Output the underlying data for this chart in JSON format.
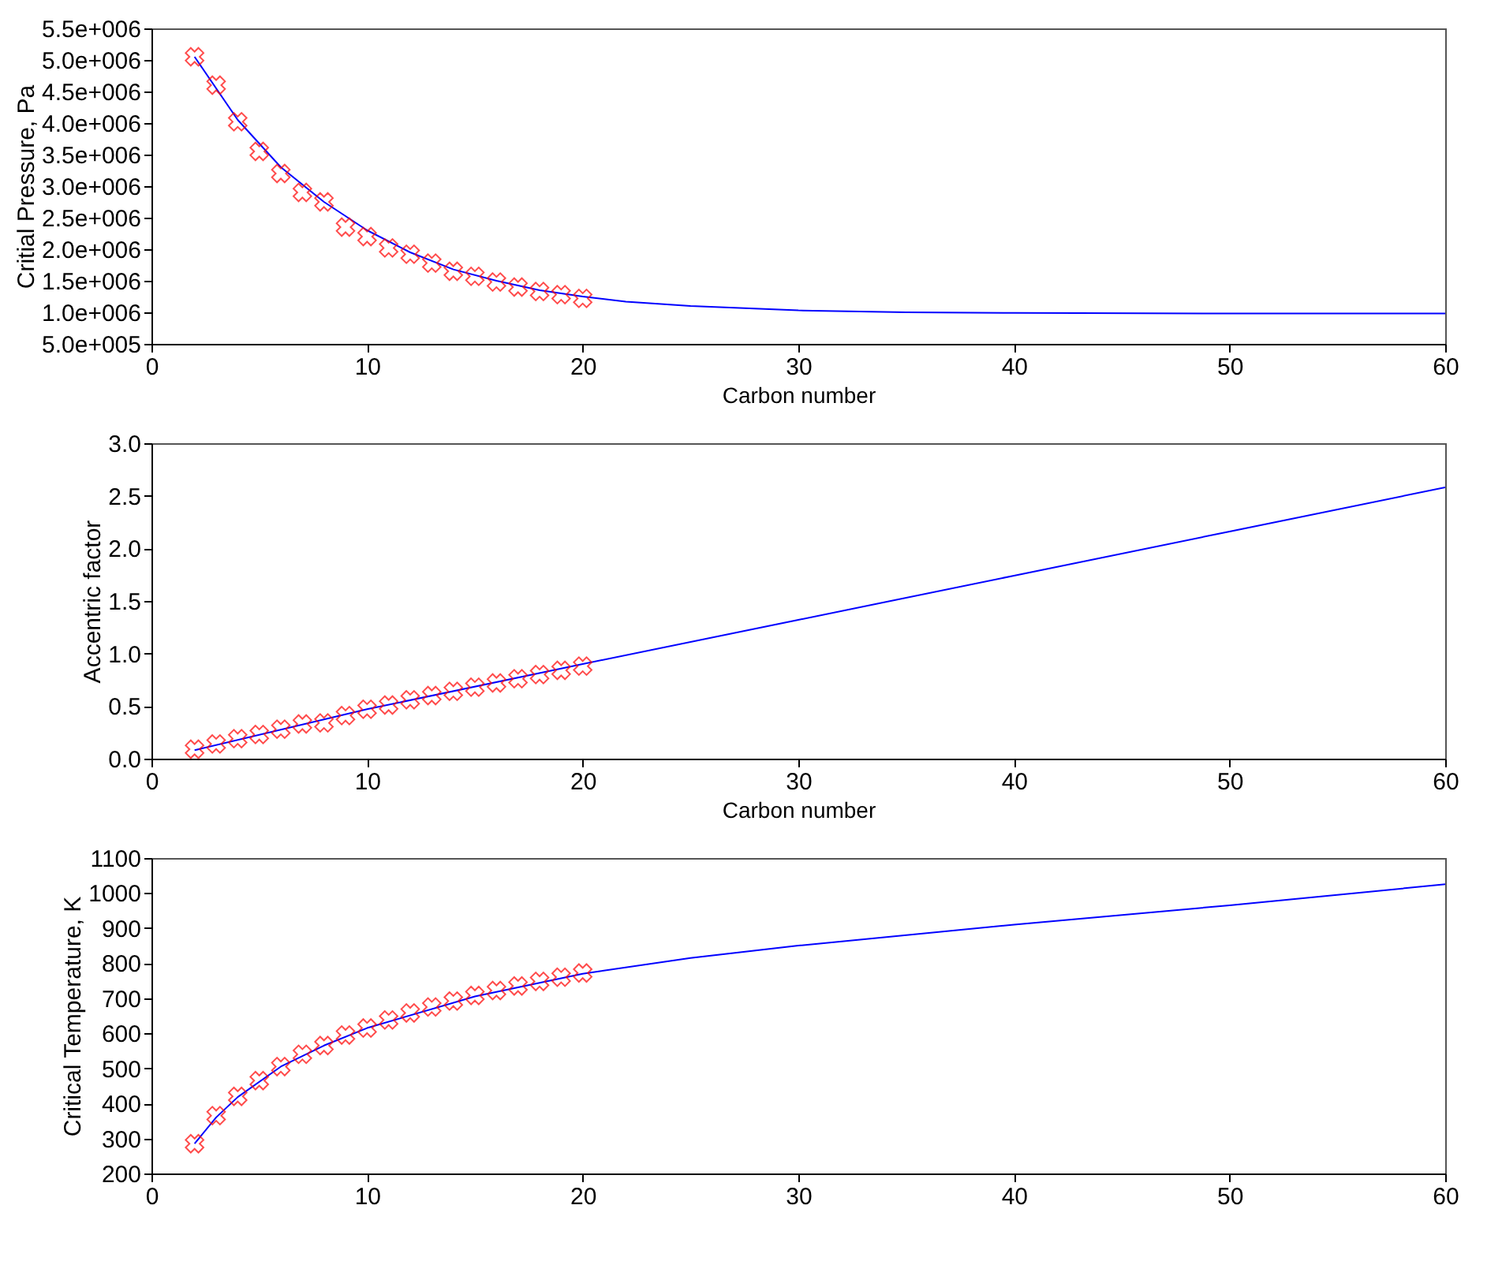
{
  "chart_data": [
    {
      "type": "line",
      "xlabel": "Carbon number",
      "ylabel": "Critial Pressure, Pa",
      "xlim": [
        0,
        60
      ],
      "xticks": [
        0,
        10,
        20,
        30,
        40,
        50,
        60
      ],
      "ylim": [
        500000,
        5500000
      ],
      "yticks": [
        {
          "value": 500000,
          "label": "5.0e+005"
        },
        {
          "value": 1000000,
          "label": "1.0e+006"
        },
        {
          "value": 1500000,
          "label": "1.5e+006"
        },
        {
          "value": 2000000,
          "label": "2.0e+006"
        },
        {
          "value": 2500000,
          "label": "2.5e+006"
        },
        {
          "value": 3000000,
          "label": "3.0e+006"
        },
        {
          "value": 3500000,
          "label": "3.5e+006"
        },
        {
          "value": 4000000,
          "label": "4.0e+006"
        },
        {
          "value": 4500000,
          "label": "4.5e+006"
        },
        {
          "value": 5000000,
          "label": "5.0e+006"
        },
        {
          "value": 5500000,
          "label": "5.5e+006"
        }
      ],
      "series": [
        {
          "type": "line",
          "color": "#0000ff",
          "x": [
            2,
            4,
            6,
            8,
            10,
            12,
            14,
            16,
            18,
            20,
            22,
            25,
            30,
            35,
            40,
            50,
            60
          ],
          "values": [
            5050000,
            4050000,
            3300000,
            2750000,
            2300000,
            1950000,
            1680000,
            1500000,
            1350000,
            1250000,
            1170000,
            1100000,
            1030000,
            1000000,
            990000,
            980000,
            980000
          ]
        },
        {
          "type": "scatter",
          "color": "#ff0000",
          "marker": "cross",
          "x": [
            2,
            3,
            4,
            5,
            6,
            7,
            8,
            9,
            10,
            11,
            12,
            13,
            14,
            15,
            16,
            17,
            18,
            19,
            20
          ],
          "values": [
            5050000,
            4600000,
            4020000,
            3550000,
            3200000,
            2900000,
            2750000,
            2350000,
            2200000,
            2020000,
            1920000,
            1780000,
            1650000,
            1570000,
            1480000,
            1400000,
            1330000,
            1280000,
            1220000
          ]
        }
      ]
    },
    {
      "type": "line",
      "xlabel": "Carbon number",
      "ylabel": "Accentric factor",
      "xlim": [
        0,
        60
      ],
      "xticks": [
        0,
        10,
        20,
        30,
        40,
        50,
        60
      ],
      "ylim": [
        0,
        3
      ],
      "yticks": [
        {
          "value": 0,
          "label": "0.0"
        },
        {
          "value": 0.5,
          "label": "0.5"
        },
        {
          "value": 1,
          "label": "1.0"
        },
        {
          "value": 1.5,
          "label": "1.5"
        },
        {
          "value": 2,
          "label": "2.0"
        },
        {
          "value": 2.5,
          "label": "2.5"
        },
        {
          "value": 3,
          "label": "3.0"
        }
      ],
      "series": [
        {
          "type": "line",
          "color": "#0000ff",
          "x": [
            2,
            10,
            20,
            30,
            40,
            50,
            60
          ],
          "values": [
            0.08,
            0.47,
            0.9,
            1.32,
            1.74,
            2.16,
            2.58
          ]
        },
        {
          "type": "scatter",
          "color": "#ff0000",
          "marker": "cross",
          "x": [
            2,
            3,
            4,
            5,
            6,
            7,
            8,
            9,
            10,
            11,
            12,
            13,
            14,
            15,
            16,
            17,
            18,
            19,
            20
          ],
          "values": [
            0.09,
            0.14,
            0.19,
            0.23,
            0.28,
            0.33,
            0.34,
            0.41,
            0.47,
            0.51,
            0.56,
            0.6,
            0.64,
            0.68,
            0.72,
            0.76,
            0.8,
            0.84,
            0.88
          ]
        }
      ]
    },
    {
      "type": "line",
      "ylabel": "Critical Temperature, K",
      "xlim": [
        0,
        60
      ],
      "xticks": [
        0,
        10,
        20,
        30,
        40,
        50,
        60
      ],
      "ylim": [
        200,
        1100
      ],
      "yticks": [
        200,
        300,
        400,
        500,
        600,
        700,
        800,
        900,
        1000,
        1100
      ],
      "series": [
        {
          "type": "line",
          "color": "#0000ff",
          "x": [
            2,
            3,
            4,
            6,
            8,
            10,
            15,
            20,
            25,
            30,
            40,
            50,
            60
          ],
          "values": [
            285,
            360,
            418,
            505,
            565,
            615,
            705,
            770,
            815,
            850,
            910,
            965,
            1025
          ]
        },
        {
          "type": "scatter",
          "color": "#ff0000",
          "marker": "cross",
          "x": [
            2,
            3,
            4,
            5,
            6,
            7,
            8,
            9,
            10,
            11,
            12,
            13,
            14,
            15,
            16,
            17,
            18,
            19,
            20
          ],
          "values": [
            285,
            365,
            420,
            465,
            505,
            540,
            565,
            595,
            615,
            638,
            658,
            675,
            692,
            708,
            722,
            735,
            748,
            760,
            772
          ]
        }
      ]
    }
  ]
}
